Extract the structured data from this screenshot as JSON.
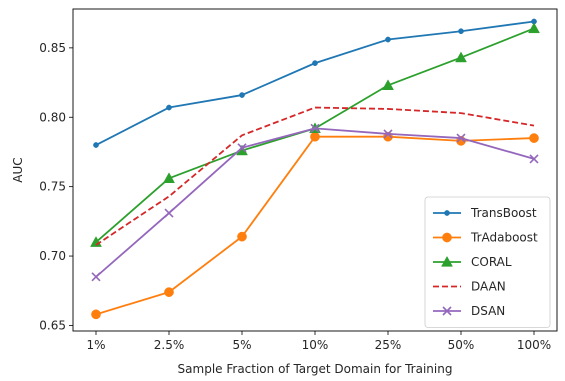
{
  "chart_data": {
    "type": "line",
    "title": "",
    "xlabel": "Sample Fraction of Target Domain for Training",
    "ylabel": "AUC",
    "categories": [
      "1%",
      "2.5%",
      "5%",
      "10%",
      "25%",
      "50%",
      "100%"
    ],
    "ylim": [
      0.646,
      0.878
    ],
    "yticks": [
      "0.65",
      "0.70",
      "0.75",
      "0.80",
      "0.85"
    ],
    "grid": false,
    "legend_position": "lower-right",
    "series": [
      {
        "name": "TransBoost",
        "color": "#1f77b4",
        "marker": "point",
        "dash": "solid",
        "values": [
          0.78,
          0.807,
          0.816,
          0.839,
          0.856,
          0.862,
          0.869
        ]
      },
      {
        "name": "TrAdaboost",
        "color": "#ff7f0e",
        "marker": "circle",
        "dash": "solid",
        "values": [
          0.658,
          0.674,
          0.714,
          0.786,
          0.786,
          0.783,
          0.785
        ]
      },
      {
        "name": "CORAL",
        "color": "#2ca02c",
        "marker": "triangle",
        "dash": "solid",
        "values": [
          0.71,
          0.756,
          0.776,
          0.792,
          0.823,
          0.843,
          0.864
        ]
      },
      {
        "name": "DAAN",
        "color": "#d62728",
        "marker": "none",
        "dash": "dashed",
        "values": [
          0.708,
          0.743,
          0.787,
          0.807,
          0.806,
          0.803,
          0.794
        ]
      },
      {
        "name": "DSAN",
        "color": "#9467bd",
        "marker": "x",
        "dash": "solid",
        "values": [
          0.685,
          0.731,
          0.778,
          0.792,
          0.788,
          0.785,
          0.77
        ]
      }
    ]
  }
}
